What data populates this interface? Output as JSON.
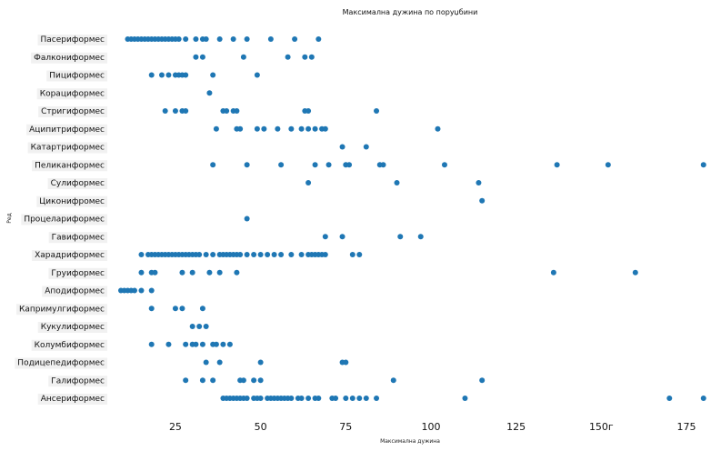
{
  "chart_data": {
    "type": "scatter",
    "title": "Максимална дужина по поруџбини",
    "xlabel": "Максимална дужина",
    "ylabel": "Ред",
    "xlim": [
      5,
      183
    ],
    "x_ticks": [
      {
        "value": 25,
        "label": "25"
      },
      {
        "value": 50,
        "label": "50"
      },
      {
        "value": 75,
        "label": "75"
      },
      {
        "value": 100,
        "label": "100"
      },
      {
        "value": 125,
        "label": "125"
      },
      {
        "value": 150,
        "label": "150г"
      },
      {
        "value": 175,
        "label": "175"
      }
    ],
    "grid": false,
    "marker_color": "#1f77b4",
    "categories": [
      "Пасериформес",
      "Фалкониформес",
      "Пициформес",
      "Корациформес",
      "Стригиформес",
      "Аципитриформес",
      "Катартриформес",
      "Пеликанформес",
      "Сулиформес",
      "Циконифромес",
      "Процелариформес",
      "Гавиформес",
      "Харадриформес",
      "Груиформес",
      "Аподиформес",
      "Капримулгиформес",
      "Кукулиформес",
      "Колумбиформес",
      "Подицепедиформес",
      "Галиформес",
      "Ансериформес"
    ],
    "series": [
      {
        "category": "Пасериформес",
        "x": [
          11,
          12,
          13,
          14,
          15,
          16,
          17,
          18,
          19,
          20,
          21,
          22,
          23,
          24,
          25,
          26,
          28,
          31,
          33,
          34,
          38,
          42,
          46,
          53,
          60,
          67
        ]
      },
      {
        "category": "Фалкониформес",
        "x": [
          31,
          33,
          45,
          58,
          63,
          65
        ]
      },
      {
        "category": "Пициформес",
        "x": [
          18,
          21,
          23,
          25,
          26,
          27,
          28,
          36,
          49
        ]
      },
      {
        "category": "Корациформес",
        "x": [
          35
        ]
      },
      {
        "category": "Стригиформес",
        "x": [
          22,
          25,
          27,
          28,
          39,
          40,
          42,
          43,
          63,
          64,
          84
        ]
      },
      {
        "category": "Аципитриформес",
        "x": [
          37,
          43,
          44,
          49,
          51,
          55,
          59,
          62,
          64,
          66,
          68,
          69,
          102
        ]
      },
      {
        "category": "Катартриформес",
        "x": [
          74,
          81
        ]
      },
      {
        "category": "Пеликанформес",
        "x": [
          36,
          46,
          56,
          66,
          70,
          75,
          76,
          85,
          86,
          104,
          137,
          152,
          180
        ]
      },
      {
        "category": "Сулиформес",
        "x": [
          64,
          90,
          114
        ]
      },
      {
        "category": "Циконифромес",
        "x": [
          115
        ]
      },
      {
        "category": "Процелариформес",
        "x": [
          46
        ]
      },
      {
        "category": "Гавиформес",
        "x": [
          69,
          74,
          91,
          97
        ]
      },
      {
        "category": "Харадриформес",
        "x": [
          15,
          17,
          18,
          19,
          20,
          21,
          22,
          23,
          24,
          25,
          26,
          27,
          28,
          29,
          30,
          31,
          32,
          34,
          36,
          38,
          39,
          40,
          41,
          42,
          43,
          44,
          46,
          48,
          50,
          52,
          54,
          56,
          59,
          62,
          64,
          65,
          66,
          67,
          68,
          69,
          77,
          79
        ]
      },
      {
        "category": "Груиформес",
        "x": [
          15,
          18,
          19,
          27,
          30,
          35,
          38,
          43,
          136,
          160
        ]
      },
      {
        "category": "Аподиформес",
        "x": [
          9,
          10,
          11,
          12,
          13,
          15,
          18
        ]
      },
      {
        "category": "Капримулгиформес",
        "x": [
          18,
          25,
          27,
          33
        ]
      },
      {
        "category": "Кукулиформес",
        "x": [
          30,
          32,
          34
        ]
      },
      {
        "category": "Колумбиформес",
        "x": [
          18,
          23,
          28,
          30,
          31,
          33,
          36,
          37,
          39,
          41
        ]
      },
      {
        "category": "Подицепедиформес",
        "x": [
          34,
          38,
          50,
          74,
          75
        ]
      },
      {
        "category": "Галиформес",
        "x": [
          28,
          33,
          36,
          44,
          45,
          48,
          50,
          89,
          115
        ]
      },
      {
        "category": "Ансериформес",
        "x": [
          39,
          40,
          41,
          42,
          43,
          44,
          45,
          46,
          48,
          49,
          50,
          52,
          53,
          54,
          55,
          56,
          57,
          58,
          59,
          61,
          62,
          64,
          66,
          67,
          71,
          72,
          75,
          77,
          79,
          81,
          84,
          110,
          170,
          180
        ]
      }
    ]
  }
}
